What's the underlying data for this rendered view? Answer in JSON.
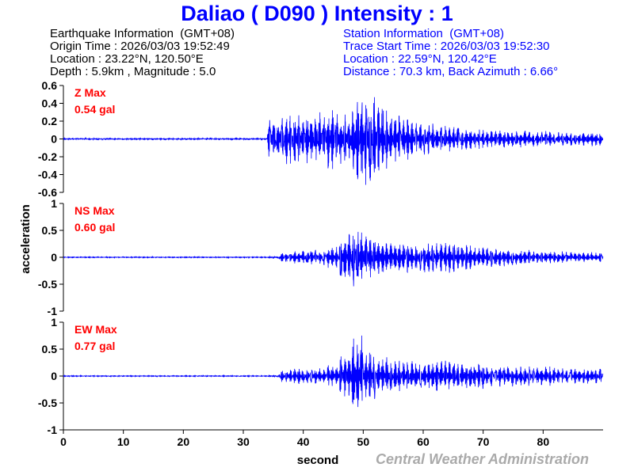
{
  "header": {
    "title": "Daliao  ( D090 )  Intensity : 1",
    "earthquake": [
      "Earthquake Information  (GMT+08)",
      "Origin Time : 2026/03/03 19:52:49",
      "Location : 23.22°N, 120.50°E",
      "Depth : 5.9km , Magnitude : 5.0"
    ],
    "station": [
      "Station Information  (GMT+08)",
      "Trace Start Time : 2026/03/03 19:52:30",
      "Location : 22.59°N, 120.42°E",
      "Distance : 70.3 km, Back Azimuth : 6.66°"
    ]
  },
  "watermark": "Central Weather Administration",
  "chart_data": {
    "type": "line",
    "xlabel": "second",
    "ylabel": "acceleration",
    "xlim": [
      0,
      90
    ],
    "xticks": [
      "0",
      "10",
      "20",
      "30",
      "40",
      "50",
      "60",
      "70",
      "80"
    ],
    "line_color": "#0000ff",
    "label_color": "#ff0000",
    "envelope_bin_seconds": 2,
    "panels": [
      {
        "name": "Z",
        "max_label": "Z Max",
        "max_value": "0.54 gal",
        "ylim": [
          -0.6,
          0.6
        ],
        "yticks": [
          "0.6",
          "0.4",
          "0.2",
          "0",
          "-0.2",
          "-0.4",
          "-0.6"
        ],
        "envelope": [
          0.01,
          0.01,
          0.01,
          0.01,
          0.01,
          0.01,
          0.01,
          0.01,
          0.01,
          0.01,
          0.01,
          0.01,
          0.01,
          0.01,
          0.01,
          0.01,
          0.01,
          0.25,
          0.3,
          0.3,
          0.28,
          0.3,
          0.35,
          0.3,
          0.5,
          0.54,
          0.4,
          0.3,
          0.25,
          0.2,
          0.18,
          0.15,
          0.15,
          0.12,
          0.12,
          0.1,
          0.1,
          0.1,
          0.1,
          0.09,
          0.09,
          0.08,
          0.08,
          0.08,
          0.08
        ]
      },
      {
        "name": "NS",
        "max_label": "NS Max",
        "max_value": "0.60 gal",
        "ylim": [
          -1,
          1
        ],
        "yticks": [
          "1",
          "0.5",
          "0",
          "-0.5",
          "-1"
        ],
        "envelope": [
          0.01,
          0.01,
          0.01,
          0.01,
          0.01,
          0.01,
          0.01,
          0.01,
          0.01,
          0.01,
          0.01,
          0.01,
          0.01,
          0.01,
          0.01,
          0.01,
          0.01,
          0.02,
          0.1,
          0.12,
          0.15,
          0.15,
          0.2,
          0.45,
          0.6,
          0.45,
          0.35,
          0.3,
          0.3,
          0.25,
          0.3,
          0.28,
          0.3,
          0.25,
          0.2,
          0.2,
          0.18,
          0.15,
          0.15,
          0.12,
          0.12,
          0.12,
          0.1,
          0.1,
          0.1
        ]
      },
      {
        "name": "EW",
        "max_label": "EW Max",
        "max_value": "0.77 gal",
        "ylim": [
          -1,
          1
        ],
        "yticks": [
          "1",
          "0.5",
          "0",
          "-0.5",
          "-1"
        ],
        "envelope": [
          0.01,
          0.01,
          0.01,
          0.01,
          0.01,
          0.01,
          0.01,
          0.01,
          0.01,
          0.01,
          0.01,
          0.01,
          0.01,
          0.01,
          0.01,
          0.01,
          0.01,
          0.02,
          0.12,
          0.15,
          0.15,
          0.15,
          0.2,
          0.4,
          0.77,
          0.5,
          0.35,
          0.3,
          0.3,
          0.3,
          0.28,
          0.3,
          0.3,
          0.25,
          0.25,
          0.2,
          0.2,
          0.2,
          0.2,
          0.18,
          0.18,
          0.15,
          0.15,
          0.15,
          0.15
        ]
      }
    ]
  }
}
